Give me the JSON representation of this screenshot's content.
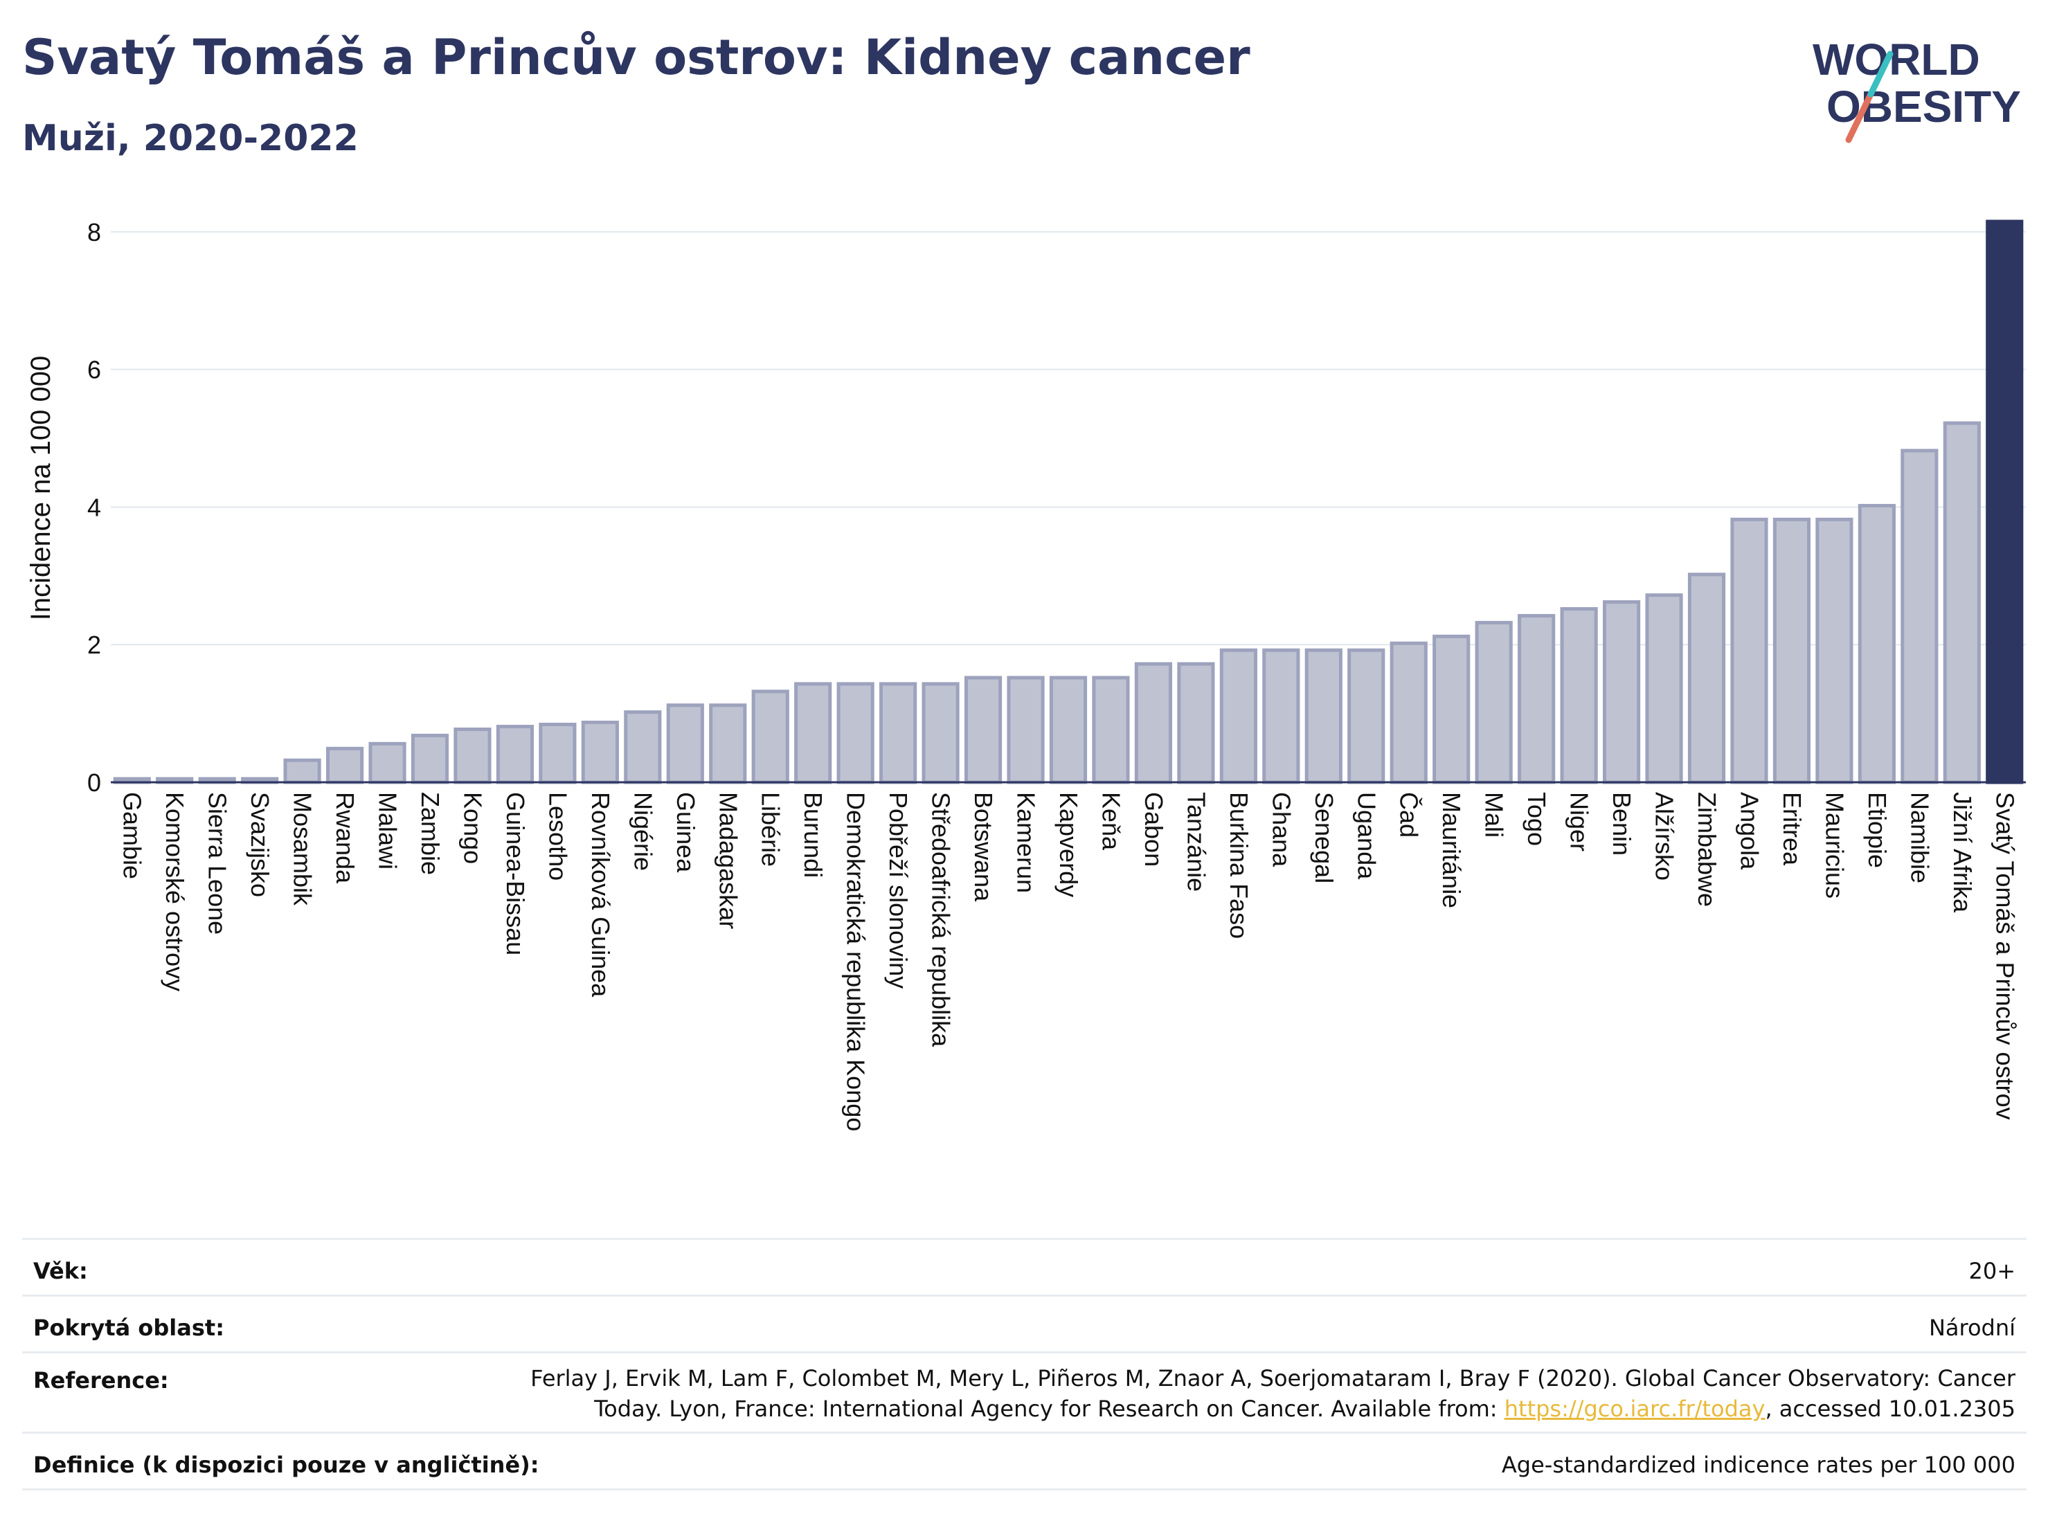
{
  "header": {
    "title": "Svatý Tomáš a Princův ostrov: Kidney cancer",
    "subtitle": "Muži, 2020-2022"
  },
  "logo": {
    "line1": "WORLD",
    "line2": "OBESITY"
  },
  "colors": {
    "bar_fill": "#bfc3d1",
    "bar_stroke": "#9da2bd",
    "highlight": "#2d3561",
    "title": "#2d3561",
    "grid": "#e3e7eb",
    "link": "#e8b93a",
    "logo_teal": "#3bbfc1",
    "logo_coral": "#e0715c"
  },
  "chart_data": {
    "type": "bar",
    "ylabel": "Incidence na 100 000",
    "ylim": [
      0,
      8.2
    ],
    "yticks": [
      "0",
      "2",
      "4",
      "6",
      "8"
    ],
    "grid": true,
    "highlight_category": "Svatý Tomáš a Princův ostrov",
    "categories": [
      "Gambie",
      "Komorské ostrovy",
      "Sierra Leone",
      "Svazijsko",
      "Mosambik",
      "Rwanda",
      "Malawi",
      "Zambie",
      "Kongo",
      "Guinea-Bissau",
      "Lesotho",
      "Rovníková Guinea",
      "Nigérie",
      "Guinea",
      "Madagaskar",
      "Libérie",
      "Burundi",
      "Demokratická republika Kongo",
      "Pobřeží slonoviny",
      "Středoafrická republika",
      "Botswana",
      "Kamerun",
      "Kapverdy",
      "Keňa",
      "Gabon",
      "Tanzánie",
      "Burkina Faso",
      "Ghana",
      "Senegal",
      "Uganda",
      "Čad",
      "Mauritánie",
      "Mali",
      "Togo",
      "Niger",
      "Benin",
      "Alžírsko",
      "Zimbabwe",
      "Angola",
      "Eritrea",
      "Mauricius",
      "Etiopie",
      "Namibie",
      "Jižní Afrika",
      "Svatý Tomáš a Princův ostrov"
    ],
    "values": [
      0.05,
      0.05,
      0.05,
      0.05,
      0.32,
      0.49,
      0.56,
      0.68,
      0.77,
      0.81,
      0.84,
      0.87,
      1.02,
      1.12,
      1.12,
      1.32,
      1.43,
      1.43,
      1.43,
      1.43,
      1.52,
      1.52,
      1.52,
      1.52,
      1.72,
      1.72,
      1.92,
      1.92,
      1.92,
      1.92,
      2.02,
      2.12,
      2.32,
      2.42,
      2.52,
      2.62,
      2.72,
      3.02,
      3.82,
      3.82,
      3.82,
      4.02,
      4.82,
      5.22,
      8.15
    ]
  },
  "info": {
    "age_label": "Věk:",
    "age_value": "20+",
    "coverage_label": "Pokrytá oblast:",
    "coverage_value": "Národní",
    "reference_label": "Reference:",
    "reference_line1": "Ferlay J, Ervik M, Lam F, Colombet M, Mery L, Piñeros M, Znaor A, Soerjomataram I, Bray F (2020). Global Cancer Observatory: Cancer",
    "reference_line2_pre": "Today. Lyon, France: International Agency for Research on Cancer. Available from: ",
    "reference_link": "https://gco.iarc.fr/today",
    "reference_line2_post": ", accessed 10.01.2305",
    "definition_label": "Definice (k dispozici pouze v angličtině):",
    "definition_value": "Age-standardized indicence rates per 100 000"
  }
}
